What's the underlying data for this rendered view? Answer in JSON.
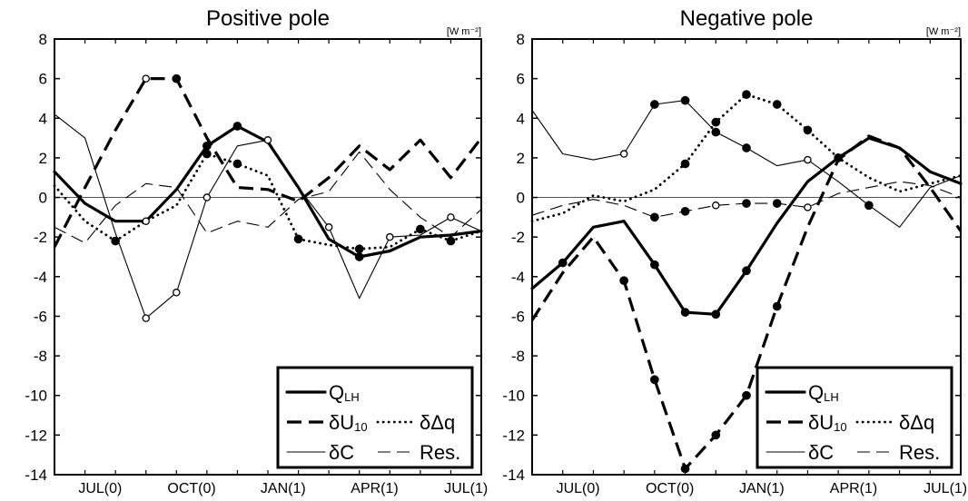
{
  "chart_data": [
    {
      "type": "line",
      "title": "Positive pole",
      "unit_label": "[W m⁻²]",
      "ylim": [
        -14,
        8
      ],
      "yticks": [
        8,
        6,
        4,
        2,
        0,
        -2,
        -4,
        -6,
        -8,
        -10,
        -12,
        -14
      ],
      "xlim": [
        0,
        14
      ],
      "xtick_labels": [
        {
          "label": "JUL(0)",
          "x": 1.5
        },
        {
          "label": "OCT(0)",
          "x": 4.5
        },
        {
          "label": "JAN(1)",
          "x": 7.5
        },
        {
          "label": "APR(1)",
          "x": 10.5
        },
        {
          "label": "JUL(1)",
          "x": 13.5
        }
      ],
      "zero_line": true,
      "legend": {
        "placement": "bottom-right",
        "entries": [
          {
            "series": "QLH",
            "text": "Q",
            "sub": "LH",
            "style": "thick"
          },
          {
            "series": "dU10",
            "text": "δU",
            "sub": "10",
            "style": "thick-dash"
          },
          {
            "series": "dDq",
            "text": "δΔq",
            "sub": "",
            "style": "dotted"
          },
          {
            "series": "dC",
            "text": "δC",
            "sub": "",
            "style": "thin"
          },
          {
            "series": "Res",
            "text": "Res.",
            "sub": "",
            "style": "thin-dash"
          }
        ]
      },
      "series": [
        {
          "key": "QLH",
          "style": "thick",
          "x": [
            0,
            1,
            2,
            3,
            4,
            5,
            6,
            7,
            8,
            9,
            10,
            11,
            12,
            13,
            14
          ],
          "y": [
            1.3,
            -0.3,
            -1.2,
            -1.2,
            0.4,
            2.6,
            3.6,
            2.8,
            0.5,
            -2.1,
            -3.0,
            -2.7,
            -2.0,
            -1.9,
            -1.7
          ],
          "markers": [
            {
              "i": 5,
              "fill": "solid"
            },
            {
              "i": 6,
              "fill": "solid"
            },
            {
              "i": 10,
              "fill": "solid"
            }
          ]
        },
        {
          "key": "dU10",
          "style": "thick-dash",
          "x": [
            0,
            1,
            2,
            3,
            4,
            5,
            6,
            7,
            8,
            9,
            10,
            11,
            12,
            13,
            14
          ],
          "y": [
            -2.5,
            0.5,
            3.4,
            6.0,
            6.0,
            3.0,
            0.5,
            0.4,
            -0.2,
            1.0,
            2.6,
            1.4,
            2.9,
            1.0,
            3.0
          ],
          "markers": [
            {
              "i": 3,
              "fill": "open"
            },
            {
              "i": 4,
              "fill": "solid"
            }
          ]
        },
        {
          "key": "dDq",
          "style": "dotted",
          "x": [
            0,
            1,
            2,
            3,
            4,
            5,
            6,
            7,
            8,
            9,
            10,
            11,
            12,
            13,
            14
          ],
          "y": [
            0.6,
            -1.2,
            -2.2,
            -1.2,
            -0.4,
            2.2,
            1.7,
            1.1,
            -2.1,
            -2.4,
            -2.6,
            -2.5,
            -1.6,
            -2.2,
            -1.7
          ],
          "markers": [
            {
              "i": 2,
              "fill": "solid"
            },
            {
              "i": 3,
              "fill": "open"
            },
            {
              "i": 5,
              "fill": "solid"
            },
            {
              "i": 6,
              "fill": "solid"
            },
            {
              "i": 8,
              "fill": "solid"
            },
            {
              "i": 10,
              "fill": "solid"
            },
            {
              "i": 12,
              "fill": "solid"
            },
            {
              "i": 13,
              "fill": "solid"
            }
          ]
        },
        {
          "key": "dC",
          "style": "thin",
          "x": [
            0,
            1,
            2,
            3,
            4,
            5,
            6,
            7,
            8,
            9,
            10,
            11,
            12,
            13,
            14
          ],
          "y": [
            4.2,
            3.0,
            -1.8,
            -6.1,
            -4.8,
            0.0,
            2.6,
            2.9,
            0.5,
            -1.5,
            -5.1,
            -2.0,
            -1.9,
            -1.0,
            -1.7
          ],
          "markers": [
            {
              "i": 3,
              "fill": "open"
            },
            {
              "i": 4,
              "fill": "open"
            },
            {
              "i": 5,
              "fill": "open"
            },
            {
              "i": 7,
              "fill": "open"
            },
            {
              "i": 9,
              "fill": "open"
            },
            {
              "i": 11,
              "fill": "open"
            },
            {
              "i": 13,
              "fill": "open"
            }
          ]
        },
        {
          "key": "Res",
          "style": "thin-dash",
          "x": [
            0,
            1,
            2,
            3,
            4,
            5,
            6,
            7,
            8,
            9,
            10,
            11,
            12,
            13,
            14
          ],
          "y": [
            -1.5,
            -2.3,
            -0.4,
            0.7,
            0.5,
            -1.8,
            -1.2,
            -1.5,
            -0.1,
            0.3,
            2.3,
            0.4,
            -1.0,
            -2.0,
            -0.6
          ],
          "markers": []
        }
      ]
    },
    {
      "type": "line",
      "title": "Negative pole",
      "unit_label": "[W m⁻²]",
      "ylim": [
        -14,
        8
      ],
      "yticks": [
        8,
        6,
        4,
        2,
        0,
        -2,
        -4,
        -6,
        -8,
        -10,
        -12,
        -14
      ],
      "xlim": [
        0,
        14
      ],
      "xtick_labels": [
        {
          "label": "JUL(0)",
          "x": 1.5
        },
        {
          "label": "OCT(0)",
          "x": 4.5
        },
        {
          "label": "JAN(1)",
          "x": 7.5
        },
        {
          "label": "APR(1)",
          "x": 10.5
        },
        {
          "label": "JUL(1)",
          "x": 13.5
        }
      ],
      "zero_line": true,
      "legend": {
        "placement": "bottom-right",
        "entries": [
          {
            "series": "QLH",
            "text": "Q",
            "sub": "LH",
            "style": "thick"
          },
          {
            "series": "dU10",
            "text": "δU",
            "sub": "10",
            "style": "thick-dash"
          },
          {
            "series": "dDq",
            "text": "δΔq",
            "sub": "",
            "style": "dotted"
          },
          {
            "series": "dC",
            "text": "δC",
            "sub": "",
            "style": "thin"
          },
          {
            "series": "Res",
            "text": "Res.",
            "sub": "",
            "style": "thin-dash"
          }
        ]
      },
      "series": [
        {
          "key": "QLH",
          "style": "thick",
          "x": [
            0,
            1,
            2,
            3,
            4,
            5,
            6,
            7,
            8,
            9,
            10,
            11,
            12,
            13,
            14
          ],
          "y": [
            -4.6,
            -3.3,
            -1.5,
            -1.2,
            -3.4,
            -5.8,
            -5.9,
            -3.7,
            -1.3,
            0.8,
            2.0,
            3.0,
            2.5,
            1.3,
            0.7
          ],
          "markers": [
            {
              "i": 1,
              "fill": "solid"
            },
            {
              "i": 4,
              "fill": "solid"
            },
            {
              "i": 5,
              "fill": "solid"
            },
            {
              "i": 6,
              "fill": "solid"
            },
            {
              "i": 7,
              "fill": "solid"
            }
          ]
        },
        {
          "key": "dU10",
          "style": "thick-dash",
          "x": [
            0,
            1,
            2,
            3,
            4,
            5,
            6,
            7,
            8,
            9,
            10,
            11,
            12,
            13,
            14
          ],
          "y": [
            -6.2,
            -3.8,
            -2.0,
            -4.2,
            -9.2,
            -13.7,
            -12.0,
            -10.0,
            -5.5,
            -1.5,
            1.9,
            3.1,
            2.5,
            0.5,
            -1.7
          ],
          "markers": [
            {
              "i": 3,
              "fill": "solid"
            },
            {
              "i": 4,
              "fill": "solid"
            },
            {
              "i": 5,
              "fill": "solid"
            },
            {
              "i": 6,
              "fill": "solid"
            },
            {
              "i": 7,
              "fill": "solid"
            },
            {
              "i": 8,
              "fill": "solid"
            }
          ]
        },
        {
          "key": "dDq",
          "style": "dotted",
          "x": [
            0,
            1,
            2,
            3,
            4,
            5,
            6,
            7,
            8,
            9,
            10,
            11,
            12,
            13,
            14
          ],
          "y": [
            -1.2,
            -0.8,
            0.1,
            -0.2,
            0.4,
            1.7,
            3.8,
            5.2,
            4.7,
            3.4,
            2.0,
            1.0,
            0.3,
            0.7,
            1.1
          ],
          "markers": [
            {
              "i": 5,
              "fill": "solid"
            },
            {
              "i": 6,
              "fill": "solid"
            },
            {
              "i": 7,
              "fill": "solid"
            },
            {
              "i": 8,
              "fill": "solid"
            },
            {
              "i": 9,
              "fill": "solid"
            },
            {
              "i": 10,
              "fill": "solid"
            }
          ]
        },
        {
          "key": "dC",
          "style": "thin",
          "x": [
            0,
            1,
            2,
            3,
            4,
            5,
            6,
            7,
            8,
            9,
            10,
            11,
            12,
            13,
            14
          ],
          "y": [
            4.4,
            2.2,
            1.9,
            2.2,
            4.7,
            4.9,
            3.3,
            2.5,
            1.6,
            1.9,
            0.8,
            -0.4,
            -1.5,
            0.5,
            1.1
          ],
          "markers": [
            {
              "i": 3,
              "fill": "open"
            },
            {
              "i": 4,
              "fill": "solid"
            },
            {
              "i": 5,
              "fill": "solid"
            },
            {
              "i": 6,
              "fill": "solid"
            },
            {
              "i": 7,
              "fill": "solid"
            },
            {
              "i": 9,
              "fill": "open"
            },
            {
              "i": 11,
              "fill": "solid"
            }
          ]
        },
        {
          "key": "Res",
          "style": "thin-dash",
          "x": [
            0,
            1,
            2,
            3,
            4,
            5,
            6,
            7,
            8,
            9,
            10,
            11,
            12,
            13,
            14
          ],
          "y": [
            -0.9,
            -0.4,
            -0.1,
            -0.4,
            -1.0,
            -0.7,
            -0.4,
            -0.3,
            -0.3,
            -0.5,
            0.2,
            0.5,
            0.8,
            0.6,
            0.0
          ],
          "markers": [
            {
              "i": 4,
              "fill": "solid"
            },
            {
              "i": 5,
              "fill": "solid"
            },
            {
              "i": 6,
              "fill": "open"
            },
            {
              "i": 7,
              "fill": "solid"
            },
            {
              "i": 8,
              "fill": "solid"
            },
            {
              "i": 9,
              "fill": "open"
            }
          ]
        }
      ]
    }
  ]
}
